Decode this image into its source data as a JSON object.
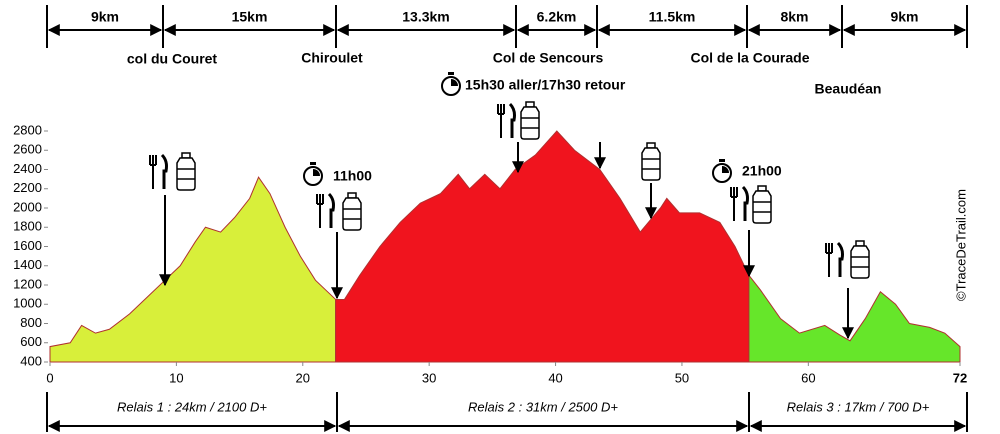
{
  "chart_data": {
    "type": "area",
    "series": [
      {
        "name": "Relais 1 : 24km / 2100 D+",
        "color": "#d8ef3a",
        "x": [
          0,
          1.6,
          2.5,
          3.6,
          4.7,
          6.3,
          7.9,
          9.1,
          10.3,
          11.5,
          12.3,
          13.5,
          14.6,
          15.8,
          16.5,
          17.4,
          18.6,
          19.8,
          21.0,
          22.6
        ],
        "values": [
          560,
          600,
          780,
          700,
          740,
          900,
          1100,
          1250,
          1400,
          1650,
          1800,
          1750,
          1900,
          2100,
          2320,
          2150,
          1800,
          1500,
          1250,
          1050
        ]
      },
      {
        "name": "Relais 2 : 31km / 2500 D+",
        "color": "#f0141e",
        "x": [
          22.6,
          23.3,
          24.5,
          26.1,
          27.7,
          29.3,
          30.9,
          32.3,
          33.2,
          34.4,
          35.6,
          36.8,
          38.4,
          40.1,
          41.5,
          43.5,
          45.1,
          46.7,
          48.3,
          48.8,
          49.8,
          51.4,
          53.0,
          54.2,
          55.3
        ],
        "values": [
          1050,
          1050,
          1300,
          1600,
          1850,
          2050,
          2150,
          2350,
          2200,
          2350,
          2200,
          2400,
          2550,
          2800,
          2600,
          2400,
          2100,
          1750,
          2000,
          2100,
          1950,
          1950,
          1850,
          1600,
          1300
        ]
      },
      {
        "name": "Relais 3 : 17km / 700 D+",
        "color": "#66e62a",
        "x": [
          55.3,
          56.2,
          57.8,
          59.3,
          61.3,
          62.5,
          63.3,
          64.5,
          65.7,
          66.9,
          68.0,
          69.6,
          70.8,
          72
        ],
        "values": [
          1300,
          1150,
          850,
          700,
          780,
          680,
          620,
          850,
          1130,
          1000,
          800,
          760,
          700,
          560
        ]
      }
    ],
    "xlim": [
      0,
      72
    ],
    "xticks": [
      0,
      10,
      20,
      30,
      40,
      50,
      60,
      72
    ],
    "ylim": [
      400,
      2800
    ],
    "yticks": [
      400,
      600,
      800,
      1000,
      1200,
      1400,
      1600,
      1800,
      2000,
      2200,
      2400,
      2600,
      2800
    ],
    "distances": [
      "9km",
      "15km",
      "13.3km",
      "6.2km",
      "11.5km",
      "8km",
      "9km"
    ],
    "places": [
      "col du Couret",
      "Chiroulet",
      "Col de Sencours",
      "Col de la Courade",
      "Beaudéan"
    ],
    "times": [
      "15h30 aller/17h30 retour",
      "11h00",
      "21h00"
    ],
    "credit": "©TraceDeTrail.com"
  }
}
